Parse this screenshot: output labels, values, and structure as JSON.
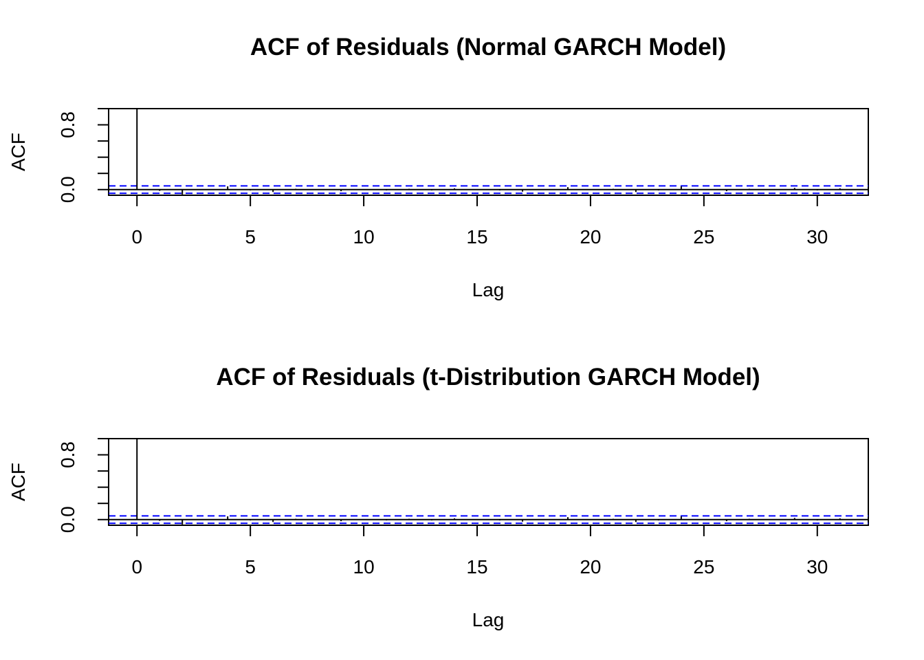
{
  "chart_data": [
    {
      "type": "bar",
      "title": "ACF of Residuals (Normal GARCH Model)",
      "xlabel": "Lag",
      "ylabel": "ACF",
      "xlim": [
        -1.25,
        32.25
      ],
      "ylim": [
        -0.07,
        1.0
      ],
      "x_ticks": [
        0,
        5,
        10,
        15,
        20,
        25,
        30
      ],
      "y_ticks": [
        0.0,
        0.2,
        0.4,
        0.6,
        0.8,
        1.0
      ],
      "y_tick_labels": [
        "0.0",
        "",
        "",
        "",
        "0.8",
        ""
      ],
      "x_tick_labels": [
        "0",
        "5",
        "10",
        "15",
        "20",
        "25",
        "30"
      ],
      "lags": [
        0,
        1,
        2,
        3,
        4,
        5,
        6,
        7,
        8,
        9,
        10,
        11,
        12,
        13,
        14,
        15,
        16,
        17,
        18,
        19,
        20,
        21,
        22,
        23,
        24,
        25,
        26,
        27,
        28,
        29,
        30,
        31
      ],
      "acf": [
        1.0,
        -0.015,
        -0.06,
        0.005,
        0.04,
        -0.01,
        -0.03,
        0.01,
        -0.005,
        -0.02,
        0.005,
        -0.01,
        0.01,
        -0.01,
        0.015,
        -0.005,
        -0.01,
        -0.025,
        0.005,
        0.03,
        -0.005,
        0.01,
        -0.03,
        -0.01,
        0.04,
        -0.005,
        -0.02,
        0.01,
        -0.005,
        0.02,
        -0.01,
        0.015
      ],
      "ci": 0.046,
      "ci_color": "#0000ff",
      "grid": false
    },
    {
      "type": "bar",
      "title": "ACF of Residuals (t-Distribution GARCH Model)",
      "xlabel": "Lag",
      "ylabel": "ACF",
      "xlim": [
        -1.25,
        32.25
      ],
      "ylim": [
        -0.07,
        1.0
      ],
      "x_ticks": [
        0,
        5,
        10,
        15,
        20,
        25,
        30
      ],
      "y_ticks": [
        0.0,
        0.2,
        0.4,
        0.6,
        0.8,
        1.0
      ],
      "y_tick_labels": [
        "0.0",
        "",
        "",
        "",
        "0.8",
        ""
      ],
      "x_tick_labels": [
        "0",
        "5",
        "10",
        "15",
        "20",
        "25",
        "30"
      ],
      "lags": [
        0,
        1,
        2,
        3,
        4,
        5,
        6,
        7,
        8,
        9,
        10,
        11,
        12,
        13,
        14,
        15,
        16,
        17,
        18,
        19,
        20,
        21,
        22,
        23,
        24,
        25,
        26,
        27,
        28,
        29,
        30,
        31
      ],
      "acf": [
        1.0,
        -0.015,
        -0.06,
        0.005,
        0.04,
        -0.01,
        -0.03,
        0.01,
        -0.005,
        -0.02,
        0.005,
        -0.01,
        0.01,
        -0.01,
        0.015,
        -0.005,
        -0.01,
        -0.025,
        0.005,
        0.03,
        -0.005,
        0.01,
        -0.03,
        -0.01,
        0.04,
        -0.005,
        -0.02,
        0.01,
        -0.005,
        0.02,
        -0.01,
        0.015
      ],
      "ci": 0.046,
      "ci_color": "#0000ff",
      "grid": false
    }
  ]
}
